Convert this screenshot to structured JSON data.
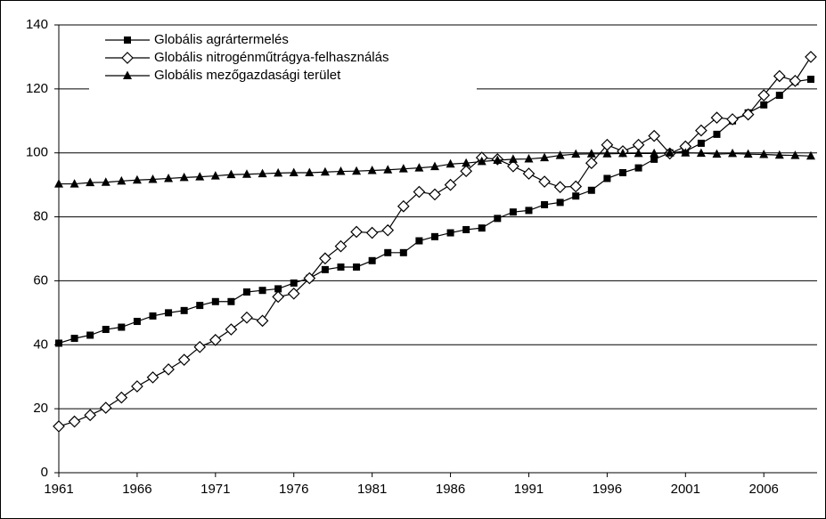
{
  "chart_data": {
    "type": "line",
    "x": [
      1961,
      1962,
      1963,
      1964,
      1965,
      1966,
      1967,
      1968,
      1969,
      1970,
      1971,
      1972,
      1973,
      1974,
      1975,
      1976,
      1977,
      1978,
      1979,
      1980,
      1981,
      1982,
      1983,
      1984,
      1985,
      1986,
      1987,
      1988,
      1989,
      1990,
      1991,
      1992,
      1993,
      1994,
      1995,
      1996,
      1997,
      1998,
      1999,
      2000,
      2001,
      2002,
      2003,
      2004,
      2005,
      2006,
      2007,
      2008,
      2009
    ],
    "series": [
      {
        "name": "Globális agrártermelés",
        "color": "#000000",
        "marker": "square",
        "values": [
          40.5,
          42,
          43,
          44.8,
          45.5,
          47.3,
          49,
          50,
          50.7,
          52.3,
          53.5,
          53.5,
          56.5,
          57,
          57.5,
          59.3,
          60.8,
          63.5,
          64.3,
          64.3,
          66.3,
          68.8,
          68.8,
          72.5,
          73.8,
          75,
          76,
          76.5,
          79.5,
          81.5,
          82,
          83.8,
          84.5,
          86.5,
          88.3,
          92,
          93.8,
          95.3,
          98,
          100,
          100.5,
          103,
          105.8,
          110,
          112.5,
          115,
          118,
          122.3,
          123
        ]
      },
      {
        "name": "Globális nitrogénműtrágya-felhasználás",
        "color": "#000000",
        "marker": "diamond",
        "values": [
          14.5,
          16,
          18,
          20.3,
          23.5,
          27,
          29.8,
          32.3,
          35.3,
          39.3,
          41.5,
          44.8,
          48.5,
          47.5,
          55,
          56,
          60.8,
          67,
          70.8,
          75.3,
          75,
          75.8,
          83.3,
          87.8,
          87,
          90,
          94.3,
          98.5,
          98,
          95.8,
          93.5,
          91,
          89.3,
          89.5,
          96.8,
          102.5,
          100.5,
          102.5,
          105.3,
          99.8,
          102,
          107,
          111,
          110.5,
          112,
          118,
          124,
          122.5,
          130
        ]
      },
      {
        "name": "Globális mezőgazdasági terület",
        "color": "#000000",
        "marker": "triangle",
        "values": [
          90.3,
          90.3,
          90.7,
          90.8,
          91.2,
          91.5,
          91.7,
          92,
          92.3,
          92.5,
          92.8,
          93.2,
          93.3,
          93.5,
          93.7,
          93.8,
          93.8,
          94,
          94.2,
          94.3,
          94.5,
          94.7,
          95,
          95.3,
          95.7,
          96.5,
          96.8,
          97.3,
          97.7,
          98,
          98.1,
          98.5,
          99.2,
          99.6,
          99.7,
          99.7,
          99.8,
          99.8,
          99.8,
          100,
          100,
          99.9,
          99.6,
          99.8,
          99.6,
          99.5,
          99.3,
          99.2,
          99.0
        ]
      }
    ],
    "xlim": [
      1961,
      2009.4
    ],
    "xticks": [
      1961,
      1966,
      1971,
      1976,
      1981,
      1986,
      1991,
      1996,
      2001,
      2006
    ],
    "ylim": [
      0,
      140
    ],
    "yticks": [
      0,
      20,
      40,
      60,
      80,
      100,
      120,
      140
    ],
    "grid": true,
    "legend": "top-left"
  }
}
